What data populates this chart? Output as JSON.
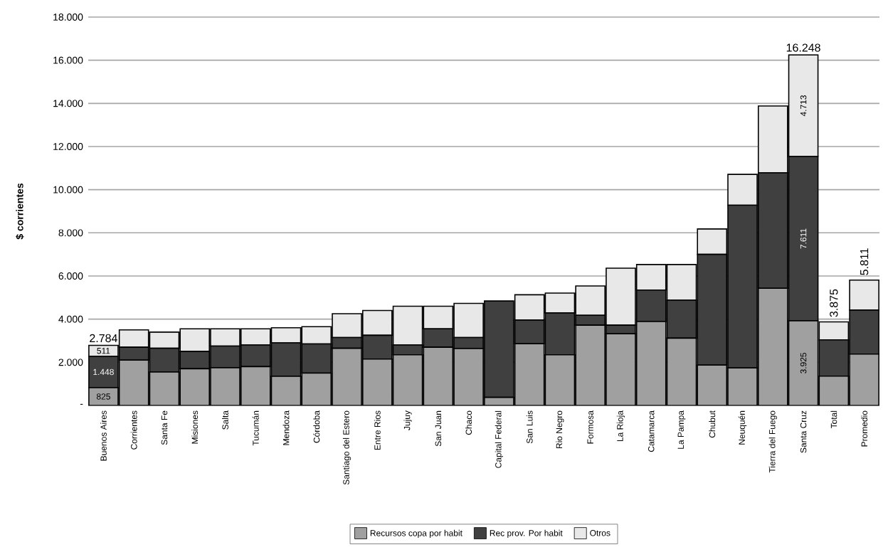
{
  "chart_data": {
    "type": "bar",
    "stacked": true,
    "ylabel": "$ corrientes",
    "categories": [
      "Buenos Aires",
      "Corrientes",
      "Santa Fe",
      "Misiones",
      "Salta",
      "Tucumán",
      "Mendoza",
      "Córdoba",
      "Santiago del Estero",
      "Entre Rios",
      "Jujuy",
      "San Juan",
      "Chaco",
      "Capital Federal",
      "San Luis",
      "Rio Negro",
      "Formosa",
      "La Rioja",
      "Catamarca",
      "La Pampa",
      "Chubut",
      "Neuquén",
      "Tierra del Fuego",
      "Santa Cruz",
      "Total",
      "Promedio"
    ],
    "series": [
      {
        "name": "Recursos copa por habit",
        "color": "#a0a0a0",
        "values": [
          825,
          2100,
          1550,
          1700,
          1750,
          1800,
          1350,
          1500,
          2650,
          2150,
          2350,
          2700,
          2640,
          375,
          2860,
          2350,
          3720,
          3320,
          3890,
          3120,
          1870,
          1740,
          5430,
          3925,
          1360,
          2380
        ],
        "value_labels": [
          "825",
          null,
          null,
          null,
          null,
          null,
          null,
          null,
          null,
          null,
          null,
          null,
          null,
          null,
          null,
          null,
          null,
          null,
          null,
          null,
          null,
          null,
          null,
          "3.925",
          null,
          null
        ]
      },
      {
        "name": "Rec prov. Por habit",
        "color": "#404040",
        "values": [
          1448,
          600,
          1100,
          800,
          1000,
          1000,
          1550,
          1350,
          500,
          1100,
          450,
          850,
          510,
          4465,
          1100,
          1940,
          460,
          400,
          1460,
          1760,
          5130,
          7540,
          5350,
          7611,
          1680,
          2040
        ],
        "value_labels": [
          "1.448",
          null,
          null,
          null,
          null,
          null,
          null,
          null,
          null,
          null,
          null,
          null,
          null,
          null,
          null,
          null,
          null,
          null,
          null,
          null,
          null,
          null,
          null,
          "7.611",
          null,
          null
        ]
      },
      {
        "name": "Otros",
        "color": "#e8e8e8",
        "values": [
          511,
          800,
          750,
          1050,
          800,
          750,
          700,
          800,
          1100,
          1150,
          1800,
          1050,
          1580,
          0,
          1170,
          920,
          1360,
          2640,
          1180,
          1650,
          1180,
          1430,
          3100,
          4713,
          835,
          1391
        ],
        "value_labels": [
          "511",
          null,
          null,
          null,
          null,
          null,
          null,
          null,
          null,
          null,
          null,
          null,
          null,
          null,
          null,
          null,
          null,
          null,
          null,
          null,
          null,
          null,
          null,
          "4.713",
          null,
          null
        ]
      }
    ],
    "totals": [
      "2.784",
      null,
      null,
      null,
      null,
      null,
      null,
      null,
      null,
      null,
      null,
      null,
      null,
      null,
      null,
      null,
      null,
      null,
      null,
      null,
      null,
      null,
      null,
      "16.248",
      "3.875",
      "5.811"
    ],
    "ylim": [
      0,
      18000
    ],
    "yticks": [
      {
        "value": 0,
        "label": "-"
      },
      {
        "value": 2000,
        "label": "2.000"
      },
      {
        "value": 4000,
        "label": "4.000"
      },
      {
        "value": 6000,
        "label": "6.000"
      },
      {
        "value": 8000,
        "label": "8.000"
      },
      {
        "value": 10000,
        "label": "10.000"
      },
      {
        "value": 12000,
        "label": "12.000"
      },
      {
        "value": 14000,
        "label": "14.000"
      },
      {
        "value": 16000,
        "label": "16.000"
      },
      {
        "value": 18000,
        "label": "18.000"
      }
    ],
    "grid": "y",
    "legend": "bottom"
  }
}
